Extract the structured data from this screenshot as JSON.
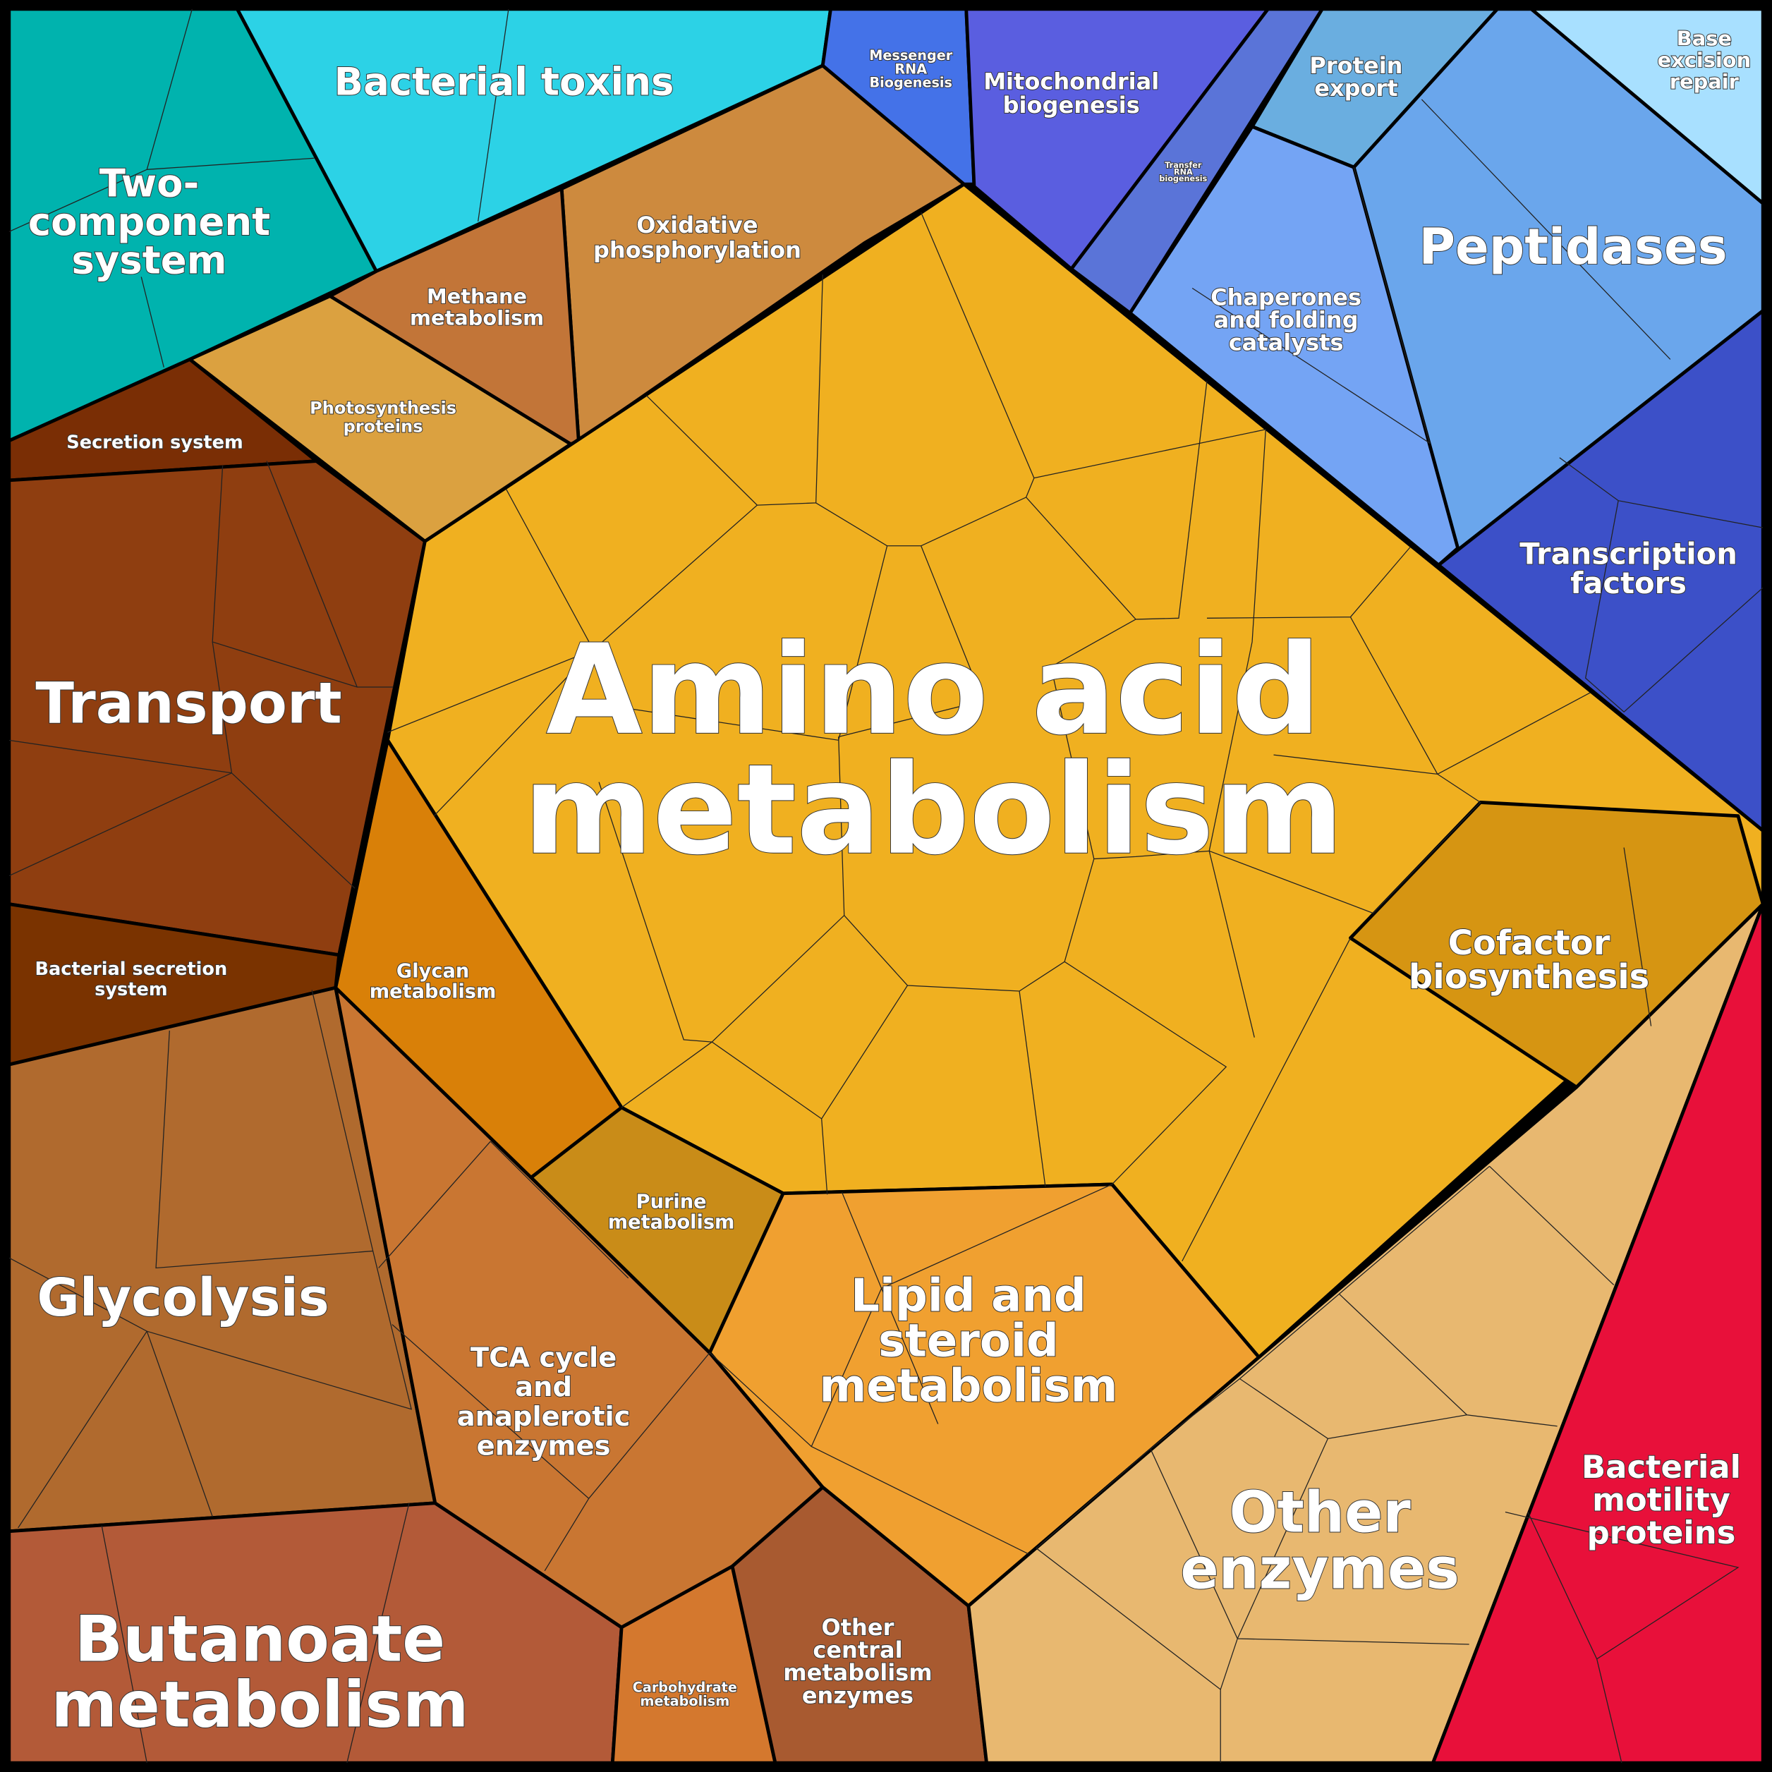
{
  "regions": [
    {
      "lines": [
        "Two-",
        "component",
        "system"
      ]
    },
    {
      "lines": [
        "Bacterial toxins"
      ]
    },
    {
      "lines": [
        "Oxidative",
        "phosphorylation"
      ]
    },
    {
      "lines": [
        "Methane",
        "metabolism"
      ]
    },
    {
      "lines": [
        "Photosynthesis",
        "proteins"
      ]
    },
    {
      "lines": [
        "Secretion system"
      ]
    },
    {
      "lines": [
        "Transport"
      ]
    },
    {
      "lines": [
        "Bacterial secretion",
        "system"
      ]
    },
    {
      "lines": [
        "Glycolysis"
      ]
    },
    {
      "lines": [
        "Butanoate",
        "metabolism"
      ]
    },
    {
      "lines": [
        "TCA cycle",
        "and",
        "anaplerotic",
        "enzymes"
      ]
    },
    {
      "lines": [
        "Carbohydrate",
        "metabolism"
      ]
    },
    {
      "lines": [
        "Other",
        "central",
        "metabolism",
        "enzymes"
      ]
    },
    {
      "lines": [
        "Amino acid",
        "metabolism"
      ]
    },
    {
      "lines": [
        "Glycan",
        "metabolism"
      ]
    },
    {
      "lines": [
        "Purine",
        "metabolism"
      ]
    },
    {
      "lines": [
        "Lipid and",
        "steroid",
        "metabolism"
      ]
    },
    {
      "lines": [
        "Cofactor",
        "biosynthesis"
      ]
    },
    {
      "lines": [
        "Other",
        "enzymes"
      ]
    },
    {
      "lines": [
        "Bacterial",
        "motility",
        "proteins"
      ]
    },
    {
      "lines": [
        "Messenger",
        "RNA",
        "Biogenesis"
      ]
    },
    {
      "lines": [
        "Mitochondrial",
        "biogenesis"
      ]
    },
    {
      "lines": [
        "Transfer",
        "RNA",
        "biogenesis"
      ]
    },
    {
      "lines": [
        "Protein",
        "export"
      ]
    },
    {
      "lines": [
        "Base",
        "excision",
        "repair"
      ]
    },
    {
      "lines": [
        "Peptidases"
      ]
    },
    {
      "lines": [
        "Chaperones",
        "and folding",
        "catalysts"
      ]
    },
    {
      "lines": [
        "Transcription",
        "factors"
      ]
    }
  ]
}
